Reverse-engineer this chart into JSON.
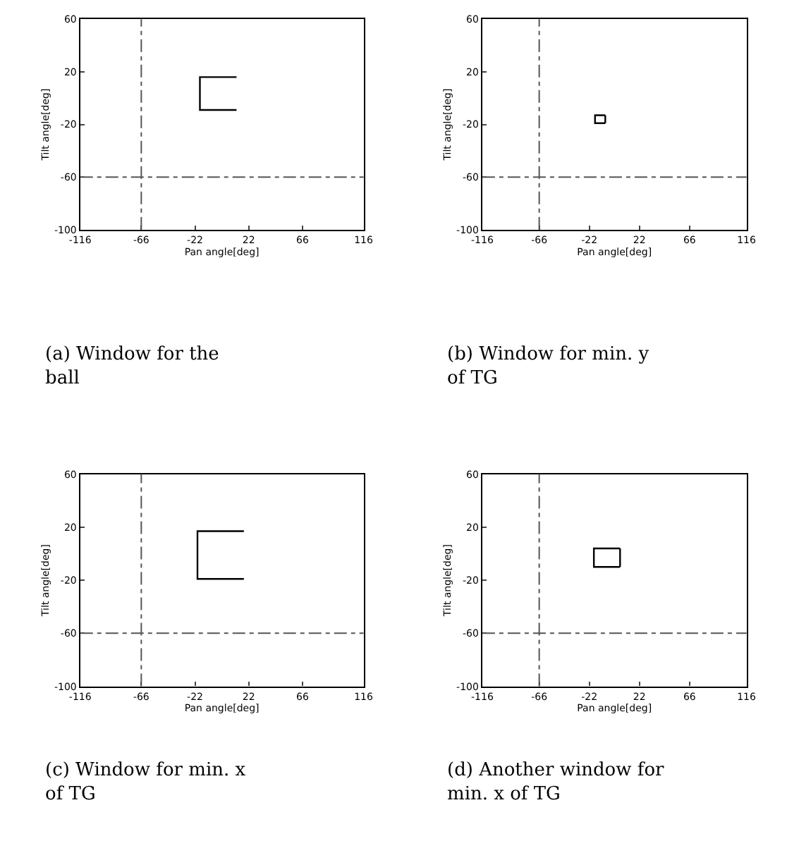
{
  "chart_data": [
    {
      "type": "line",
      "xlabel": "Pan angle[deg]",
      "ylabel": "Tilt angle[deg]",
      "xlim": [
        -116,
        116
      ],
      "ylim": [
        -100,
        60
      ],
      "xticks": [
        -116,
        -66,
        -22,
        22,
        66,
        116
      ],
      "yticks": [
        -100,
        -60,
        -20,
        20,
        60
      ],
      "series": [
        {
          "color": "#000000",
          "x": [
            12,
            -18,
            -18,
            12
          ],
          "values": [
            16,
            16,
            -9,
            -9
          ]
        }
      ],
      "ref_lines": [
        {
          "axis": "x",
          "value": -66,
          "color": "#555555",
          "line_style": "dashed"
        },
        {
          "axis": "y",
          "value": -60,
          "color": "#555555",
          "line_style": "dashed"
        }
      ],
      "annotations": [
        "(a) Window for the ball"
      ]
    },
    {
      "type": "line",
      "xlabel": "Pan angle[deg]",
      "ylabel": "Tilt angle[deg]",
      "xlim": [
        -116,
        116
      ],
      "ylim": [
        -100,
        60
      ],
      "xticks": [
        -116,
        -66,
        -22,
        22,
        66,
        116
      ],
      "yticks": [
        -100,
        -60,
        -20,
        20,
        60
      ],
      "series": [
        {
          "color": "#000000",
          "x": [
            -8,
            -17,
            -17,
            -8
          ],
          "values": [
            -13,
            -13,
            -19,
            -19
          ]
        },
        {
          "color": "#000000",
          "x": [
            -8,
            -8
          ],
          "values": [
            -13,
            -19
          ]
        }
      ],
      "ref_lines": [
        {
          "axis": "x",
          "value": -66,
          "color": "#555555",
          "line_style": "dashed"
        },
        {
          "axis": "y",
          "value": -60,
          "color": "#555555",
          "line_style": "dashed"
        }
      ],
      "annotations": [
        "(b) Window for min. y of TG"
      ]
    },
    {
      "type": "line",
      "xlabel": "Pan angle[deg]",
      "ylabel": "Tilt angle[deg]",
      "xlim": [
        -116,
        116
      ],
      "ylim": [
        -100,
        60
      ],
      "xticks": [
        -116,
        -66,
        -22,
        22,
        66,
        116
      ],
      "yticks": [
        -100,
        -60,
        -20,
        20,
        60
      ],
      "series": [
        {
          "color": "#000000",
          "x": [
            18,
            -20,
            -20,
            18
          ],
          "values": [
            17,
            17,
            -19,
            -19
          ]
        }
      ],
      "ref_lines": [
        {
          "axis": "x",
          "value": -66,
          "color": "#555555",
          "line_style": "dashed"
        },
        {
          "axis": "y",
          "value": -60,
          "color": "#555555",
          "line_style": "dashed"
        }
      ],
      "annotations": [
        "(c) Window for min. x of TG"
      ]
    },
    {
      "type": "line",
      "xlabel": "Pan angle[deg]",
      "ylabel": "Tilt angle[deg]",
      "xlim": [
        -116,
        116
      ],
      "ylim": [
        -100,
        60
      ],
      "xticks": [
        -116,
        -66,
        -22,
        22,
        66,
        116
      ],
      "yticks": [
        -100,
        -60,
        -20,
        20,
        60
      ],
      "series": [
        {
          "color": "#000000",
          "x": [
            5,
            -18,
            -18,
            5
          ],
          "values": [
            4,
            4,
            -10,
            -10
          ]
        },
        {
          "color": "#000000",
          "x": [
            5,
            5
          ],
          "values": [
            4,
            -10
          ]
        }
      ],
      "ref_lines": [
        {
          "axis": "x",
          "value": -66,
          "color": "#555555",
          "line_style": "dashed"
        },
        {
          "axis": "y",
          "value": -60,
          "color": "#555555",
          "line_style": "dashed"
        }
      ],
      "annotations": [
        "(d) Another window for min. x of TG"
      ]
    }
  ]
}
